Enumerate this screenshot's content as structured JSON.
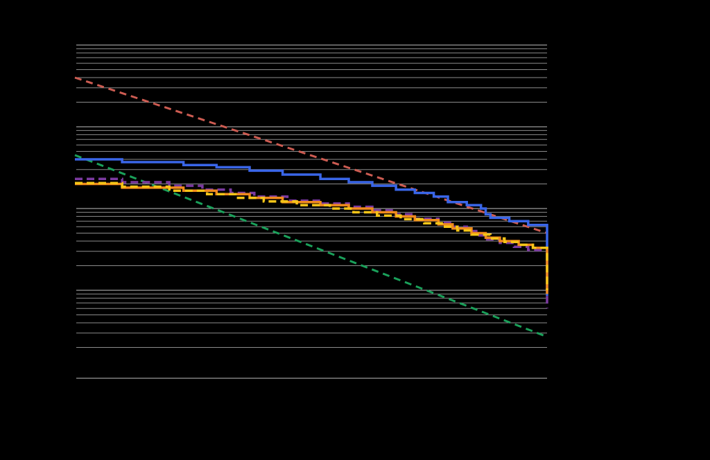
{
  "chart_data": {
    "type": "line",
    "title": "",
    "xlabel": "",
    "ylabel": "",
    "xlim": [
      0,
      100
    ],
    "ylim": [
      0.001,
      10
    ],
    "y_scale": "log",
    "grid": "horizontal",
    "legend": "none",
    "background": "#000000",
    "gridline_color": "#ffffff",
    "series": [
      {
        "style": "dashed",
        "color": "#cd5c52",
        "x": [
          0,
          100
        ],
        "y": [
          4.0,
          0.05
        ]
      },
      {
        "style": "dashed",
        "color": "#1aa05a",
        "x": [
          0,
          100
        ],
        "y": [
          0.45,
          0.0027
        ]
      },
      {
        "style": "step",
        "color": "#3a66e8",
        "x": [
          0,
          10,
          10,
          23,
          23,
          30,
          30,
          37,
          37,
          44,
          44,
          52,
          52,
          58,
          58,
          63,
          63,
          68,
          68,
          72,
          72,
          76,
          76,
          79,
          79,
          83,
          83,
          86,
          86,
          87,
          87,
          88,
          88,
          92,
          92,
          96,
          96,
          100,
          100
        ],
        "y": [
          0.4,
          0.4,
          0.37,
          0.37,
          0.34,
          0.34,
          0.32,
          0.32,
          0.29,
          0.29,
          0.26,
          0.26,
          0.23,
          0.23,
          0.21,
          0.21,
          0.19,
          0.19,
          0.17,
          0.17,
          0.155,
          0.155,
          0.14,
          0.14,
          0.12,
          0.12,
          0.11,
          0.11,
          0.1,
          0.1,
          0.085,
          0.085,
          0.077,
          0.077,
          0.07,
          0.07,
          0.063,
          0.063,
          0.0085
        ]
      },
      {
        "style": "dashed-step",
        "color": "#7b3aa0",
        "x": [
          0,
          10,
          10,
          20,
          20,
          27,
          27,
          33,
          33,
          38,
          38,
          45,
          45,
          52,
          52,
          58,
          58,
          63,
          63,
          68,
          68,
          72,
          72,
          77,
          77,
          80,
          80,
          83,
          83,
          85,
          85,
          87,
          87,
          90,
          90,
          93,
          93,
          96,
          96,
          100,
          100
        ],
        "y": [
          0.23,
          0.23,
          0.21,
          0.21,
          0.19,
          0.19,
          0.17,
          0.17,
          0.155,
          0.155,
          0.14,
          0.14,
          0.125,
          0.125,
          0.115,
          0.115,
          0.105,
          0.105,
          0.095,
          0.095,
          0.085,
          0.085,
          0.075,
          0.075,
          0.067,
          0.067,
          0.06,
          0.06,
          0.053,
          0.053,
          0.047,
          0.047,
          0.042,
          0.042,
          0.038,
          0.038,
          0.034,
          0.034,
          0.031,
          0.031,
          0.006
        ]
      },
      {
        "style": "step",
        "color": "#f08a1c",
        "x": [
          0,
          10,
          10,
          23,
          23,
          30,
          30,
          37,
          37,
          44,
          44,
          52,
          52,
          58,
          58,
          63,
          63,
          68,
          68,
          72,
          72,
          77,
          77,
          80,
          80,
          84,
          84,
          87,
          87,
          90,
          90,
          94,
          94,
          97,
          97,
          100,
          100
        ],
        "y": [
          0.2,
          0.2,
          0.18,
          0.18,
          0.165,
          0.165,
          0.15,
          0.15,
          0.135,
          0.135,
          0.12,
          0.12,
          0.11,
          0.11,
          0.1,
          0.1,
          0.09,
          0.09,
          0.08,
          0.08,
          0.072,
          0.072,
          0.064,
          0.064,
          0.057,
          0.057,
          0.05,
          0.05,
          0.044,
          0.044,
          0.04,
          0.04,
          0.036,
          0.036,
          0.033,
          0.033,
          0.009
        ]
      },
      {
        "style": "dashed-step",
        "color": "#f5c518",
        "x": [
          0,
          10,
          10,
          20,
          20,
          28,
          28,
          34,
          34,
          40,
          40,
          47,
          47,
          54,
          54,
          59,
          59,
          64,
          64,
          69,
          69,
          74,
          74,
          78,
          78,
          81,
          81,
          84,
          84,
          88,
          88,
          91,
          91,
          94,
          94,
          97,
          97,
          100,
          100
        ],
        "y": [
          0.205,
          0.205,
          0.185,
          0.185,
          0.165,
          0.165,
          0.15,
          0.15,
          0.135,
          0.135,
          0.122,
          0.122,
          0.11,
          0.11,
          0.1,
          0.1,
          0.09,
          0.09,
          0.082,
          0.082,
          0.074,
          0.074,
          0.066,
          0.066,
          0.06,
          0.06,
          0.054,
          0.054,
          0.048,
          0.048,
          0.043,
          0.043,
          0.039,
          0.039,
          0.036,
          0.036,
          0.033,
          0.033,
          0.01
        ]
      }
    ]
  }
}
